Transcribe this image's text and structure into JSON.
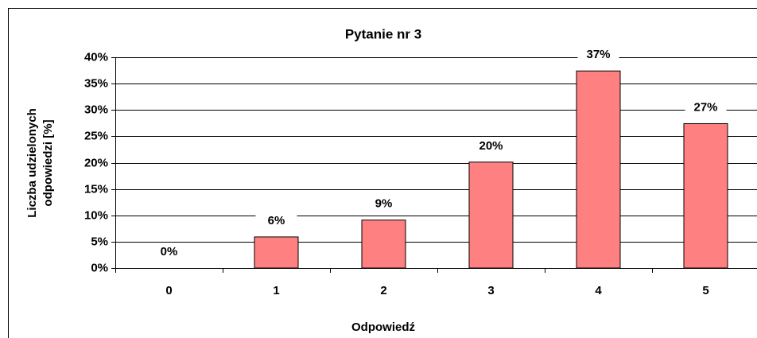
{
  "chart_data": {
    "type": "bar",
    "title": "Pytanie nr 3",
    "x_label": "Odpowiedź",
    "y_label": [
      "Liczba udzielonych",
      "odpowiedzi [%]"
    ],
    "categories": [
      "0",
      "1",
      "2",
      "3",
      "4",
      "5"
    ],
    "values": [
      0,
      5.9,
      9.1,
      20.1,
      37.4,
      27.4
    ],
    "value_labels": [
      "0%",
      "6%",
      "9%",
      "20%",
      "37%",
      "27%"
    ],
    "color": "#ff8080",
    "ylim": [
      0,
      40
    ],
    "yticks": [
      {
        "value": 0,
        "label": "0%"
      },
      {
        "value": 5,
        "label": "5%"
      },
      {
        "value": 10,
        "label": "10%"
      },
      {
        "value": 15,
        "label": "15%"
      },
      {
        "value": 20,
        "label": "20%"
      },
      {
        "value": 25,
        "label": "25%"
      },
      {
        "value": 30,
        "label": "30%"
      },
      {
        "value": 35,
        "label": "35%"
      },
      {
        "value": 40,
        "label": "40%"
      }
    ],
    "grid": true
  }
}
